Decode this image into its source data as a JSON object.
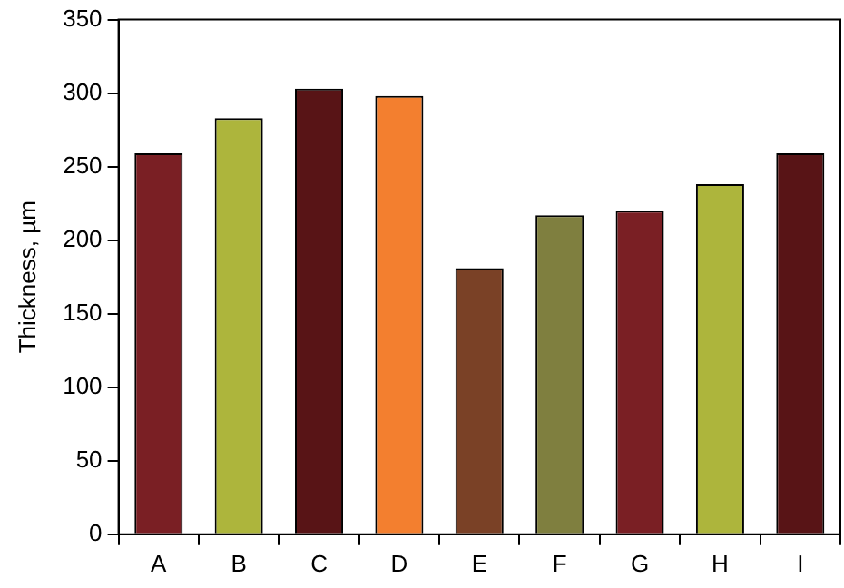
{
  "chart_data": {
    "type": "bar",
    "ylabel": "Thickness, µm",
    "categories": [
      "A",
      "B",
      "C",
      "D",
      "E",
      "F",
      "G",
      "H",
      "I"
    ],
    "values": [
      259,
      283,
      303,
      298,
      181,
      217,
      220,
      238,
      259
    ],
    "colors": [
      "#7a1f24",
      "#adb53c",
      "#581416",
      "#f37f2f",
      "#7a4126",
      "#7f7f3f",
      "#7a1f24",
      "#adb53c",
      "#581416"
    ],
    "ylim": [
      0,
      350
    ],
    "yticks": [
      0,
      50,
      100,
      150,
      200,
      250,
      300,
      350
    ],
    "grid": false,
    "legend": false
  }
}
